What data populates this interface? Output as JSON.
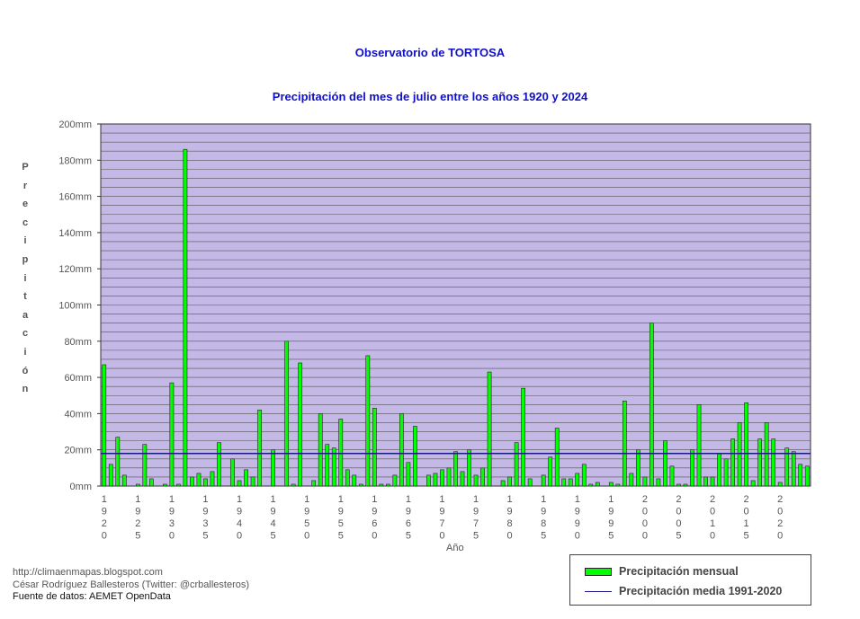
{
  "chart_data": {
    "type": "bar",
    "title": "Observatorio de TORTOSA",
    "subtitle": "Precipitación del mes de julio entre los años 1920 y 2024",
    "ylabel": "Precipitación",
    "xlabel": "Año",
    "ylim": [
      0,
      200
    ],
    "y_ticks": [
      "0mm",
      "20mm",
      "40mm",
      "60mm",
      "80mm",
      "100mm",
      "120mm",
      "140mm",
      "160mm",
      "180mm",
      "200mm"
    ],
    "x_tick_labels": [
      "1920",
      "1925",
      "1930",
      "1935",
      "1940",
      "1945",
      "1950",
      "1955",
      "1960",
      "1965",
      "1970",
      "1975",
      "1980",
      "1985",
      "1990",
      "1995",
      "2000",
      "2005",
      "2010",
      "2015",
      "2020"
    ],
    "x_start": 1920,
    "grid": true,
    "legend_position": "bottom-right",
    "colors": {
      "bars": "#00ff00",
      "plot_bg": "#c3b8e6",
      "mean_line": "#1a1a80",
      "title": "#1010c8"
    },
    "series": [
      {
        "name": "Precipitación mensual",
        "values": [
          67,
          12,
          27,
          6,
          0,
          1,
          23,
          4,
          0,
          1,
          57,
          1,
          186,
          5,
          7,
          4,
          8,
          24,
          0,
          15,
          3,
          9,
          5,
          42,
          0,
          20,
          0,
          80,
          1,
          68,
          0,
          3,
          40,
          23,
          21,
          37,
          9,
          6,
          1,
          72,
          43,
          1,
          1,
          6,
          40,
          13,
          33,
          0,
          6,
          7,
          9,
          10,
          19,
          8,
          20,
          6,
          10,
          63,
          0,
          3,
          5,
          24,
          54,
          4,
          0,
          6,
          16,
          32,
          4,
          4,
          7,
          12,
          1,
          2,
          0,
          2,
          1,
          47,
          7,
          20,
          5,
          90,
          4,
          25,
          11,
          1,
          1,
          20,
          45,
          5,
          5,
          18,
          15,
          26,
          35,
          46,
          3,
          26,
          35,
          26,
          2,
          21,
          19,
          12,
          11
        ]
      },
      {
        "name": "Precipitación media 1991-2020",
        "values": [
          18
        ]
      }
    ]
  },
  "credits": {
    "blog": "http://climaenmapas.blogspot.com",
    "author": "César Rodríguez Ballesteros (Twitter: @crballesteros)",
    "source": "Fuente de datos: AEMET OpenData"
  }
}
